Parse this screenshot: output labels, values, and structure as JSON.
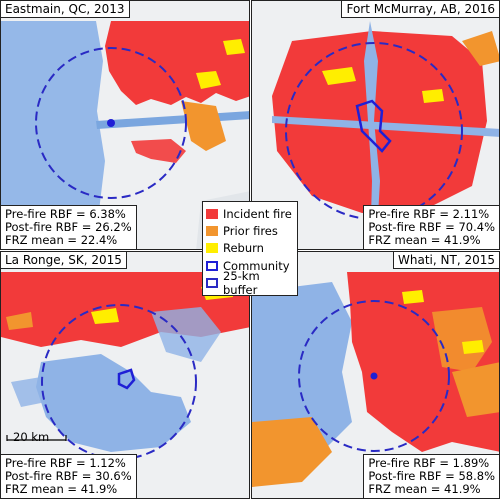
{
  "colors": {
    "incident_fire": "#f23a3a",
    "prior_fires": "#f2952e",
    "reburn": "#ffee00",
    "community": "#1f1fd6",
    "buffer": "#2a2ac4",
    "water": "#8fb3e6",
    "land": "#eef0f2"
  },
  "panels": [
    {
      "title": "Eastmain, QC, 2013",
      "stats": [
        "Pre-fire RBF = 6.38%",
        "Post-fire RBF = 26.2%",
        "FRZ mean = 22.4%"
      ]
    },
    {
      "title": "Fort McMurray, AB, 2016",
      "stats": [
        "Pre-fire RBF = 2.11%",
        "Post-fire RBF = 70.4%",
        "FRZ mean = 41.9%"
      ]
    },
    {
      "title": "La Ronge, SK, 2015",
      "stats": [
        "Pre-fire RBF = 1.12%",
        "Post-fire RBF = 30.6%",
        "FRZ mean = 41.9%"
      ]
    },
    {
      "title": "Whati, NT, 2015",
      "stats": [
        "Pre-fire RBF = 1.89%",
        "Post-fire RBF = 58.8%",
        "FRZ mean = 41.9%"
      ]
    }
  ],
  "legend": {
    "items": [
      {
        "label": "Incident fire",
        "icon": "filled-square-red"
      },
      {
        "label": "Prior fires",
        "icon": "filled-square-orange"
      },
      {
        "label": "Reburn",
        "icon": "filled-square-yellow"
      },
      {
        "label": "Community",
        "icon": "outline-square-blue"
      },
      {
        "label": "25-km buffer",
        "icon": "dashed-square-blue"
      }
    ]
  },
  "scale_bar": {
    "label": "20 km"
  }
}
